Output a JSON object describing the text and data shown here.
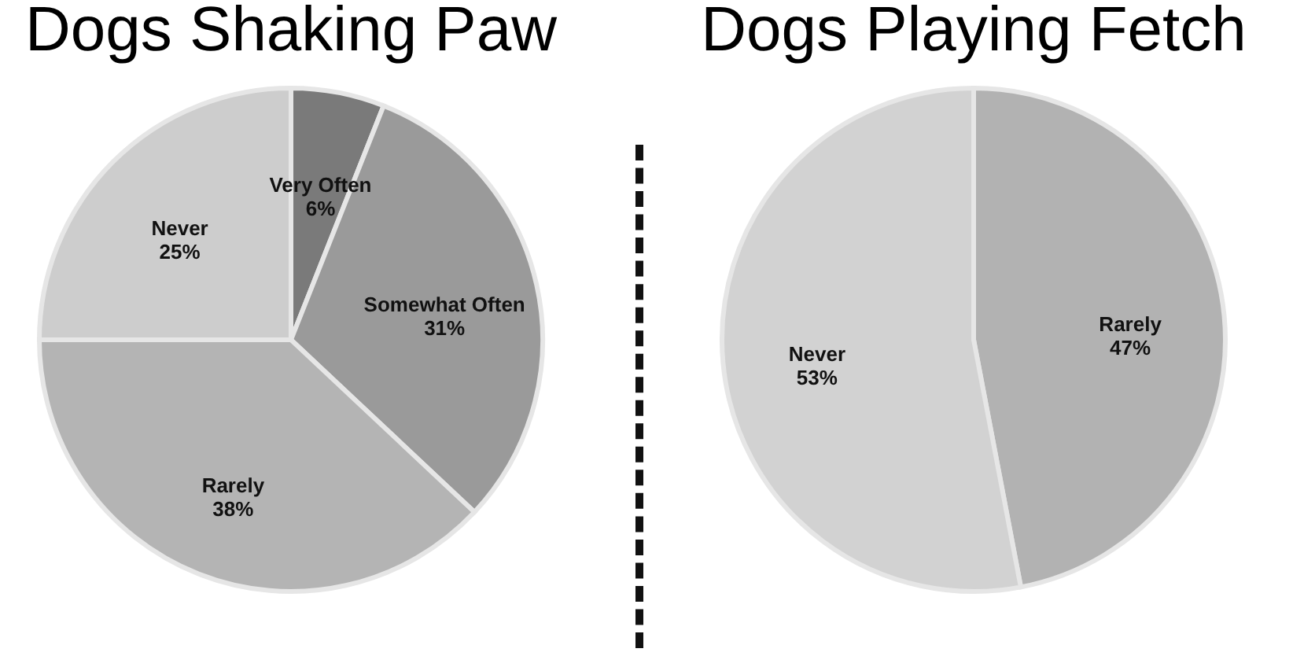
{
  "chart_data": [
    {
      "type": "pie",
      "title": "Dogs Shaking Paw",
      "categories": [
        "Very Often",
        "Somewhat Often",
        "Rarely",
        "Never"
      ],
      "values": [
        6,
        31,
        38,
        25
      ],
      "colors": [
        "#7a7a7a",
        "#9a9a9a",
        "#b4b4b4",
        "#cdcdcd"
      ],
      "value_labels": [
        "6%",
        "31%",
        "38%",
        "25%"
      ]
    },
    {
      "type": "pie",
      "title": "Dogs Playing Fetch",
      "categories": [
        "Rarely",
        "Never"
      ],
      "values": [
        47,
        53
      ],
      "colors": [
        "#b2b2b2",
        "#d2d2d2"
      ],
      "value_labels": [
        "47%",
        "53%"
      ]
    }
  ]
}
